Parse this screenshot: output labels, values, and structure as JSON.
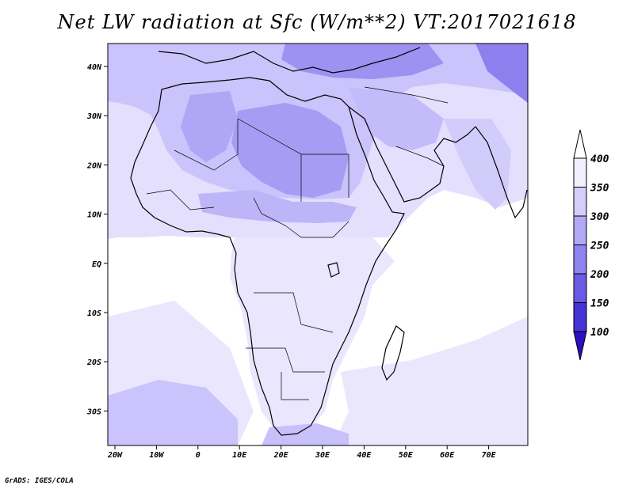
{
  "title": "Net LW radiation at Sfc (W/m**2) VT:2017021618",
  "credit": "GrADS: IGES/COLA",
  "map": {
    "region": "Africa and Middle East",
    "lon_range": [
      -22,
      80
    ],
    "lat_range": [
      -37,
      45
    ],
    "x_ticks": [
      "20W",
      "10W",
      "0",
      "10E",
      "20E",
      "30E",
      "40E",
      "50E",
      "60E",
      "70E"
    ],
    "y_ticks": [
      "40N",
      "30N",
      "20N",
      "10N",
      "EQ",
      "10S",
      "20S",
      "30S"
    ],
    "ocean_color": "#ffffff",
    "land_shade_colors": [
      "#e9e6fd",
      "#cbc3fb",
      "#a79cf3"
    ]
  },
  "colorbar": {
    "labels": [
      "400",
      "350",
      "300",
      "250",
      "200",
      "150",
      "100"
    ],
    "colors": [
      "#f1f0fe",
      "#d4cefb",
      "#b2a9f6",
      "#8f83ef",
      "#6a5be5",
      "#4635d6",
      "#2c0fbf"
    ]
  }
}
